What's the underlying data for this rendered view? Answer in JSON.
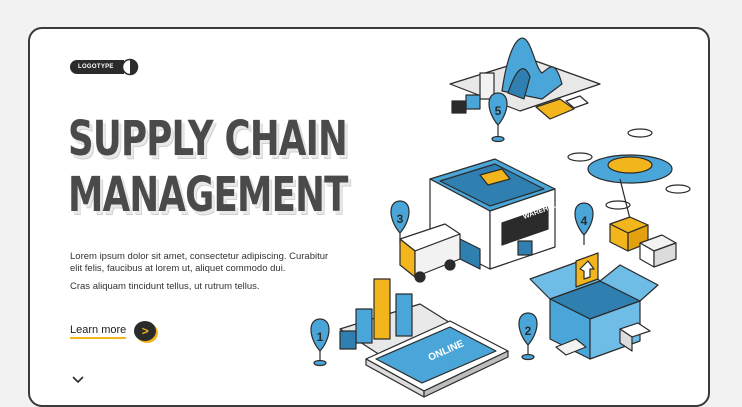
{
  "logo": {
    "text": "LOGOTYPE",
    "icon": "logo-circle-icon"
  },
  "hero": {
    "title_line1": "SUPPLY CHAIN",
    "title_line2": "MANAGEMENT",
    "paragraph1": "Lorem ipsum dolor sit amet, consectetur adipiscing. Curabitur elit felis, faucibus at lorem ut, aliquet commodo dui.",
    "paragraph2": "Cras aliquam tincidunt tellus, ut rutrum tellus.",
    "cta_label": "Learn more",
    "cta_icon": "arrow-right-icon",
    "scroll_icon": "chevron-down-icon"
  },
  "illustration": {
    "warehouse_sign": "WAREHOUSE",
    "phone_screen": "ONLINE",
    "steps": [
      "1",
      "2",
      "3",
      "4",
      "5"
    ]
  },
  "colors": {
    "accent_yellow": "#f2b51b",
    "accent_blue": "#4aa6d8",
    "dark": "#2b2b2b",
    "frame": "#3a3a3a"
  }
}
